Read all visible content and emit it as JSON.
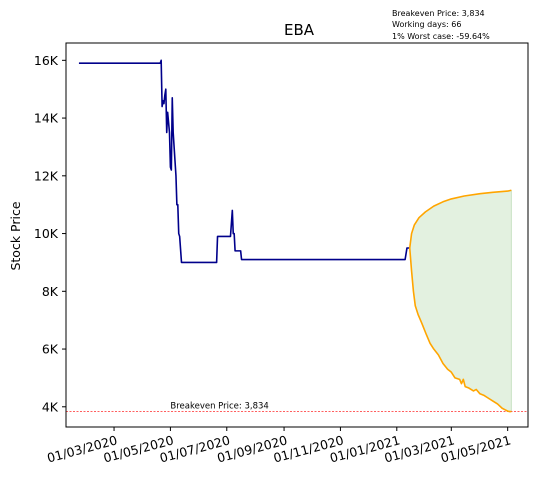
{
  "chart_data": {
    "type": "line",
    "title": "EBA",
    "ylabel": "Stock Price",
    "xlabel": "",
    "stats": [
      "Breakeven Price: 3,834",
      "Working days: 66",
      "1% Worst case: -59.64%"
    ],
    "breakeven": {
      "value": 3834,
      "label": "Breakeven Price: 3,834",
      "color": "#ff0000"
    },
    "xlim": [
      "2020-01-09",
      "2021-05-23"
    ],
    "ylim": [
      3300,
      16600
    ],
    "y_ticks": [
      4000,
      6000,
      8000,
      10000,
      12000,
      14000,
      16000
    ],
    "y_tick_labels": [
      "4K",
      "6K",
      "8K",
      "10K",
      "12K",
      "14K",
      "16K"
    ],
    "x_ticks": [
      "2020-03-01",
      "2020-05-01",
      "2020-07-01",
      "2020-09-01",
      "2020-11-01",
      "2021-01-01",
      "2021-03-01",
      "2021-05-01"
    ],
    "x_tick_labels": [
      "01/03/2020",
      "01/05/2020",
      "01/07/2020",
      "01/09/2020",
      "01/11/2020",
      "01/01/2021",
      "01/03/2021",
      "01/05/2021"
    ],
    "series": [
      {
        "kind": "historical",
        "color": "#00008b",
        "points": [
          [
            "2020-01-23",
            15900
          ],
          [
            "2020-04-20",
            15900
          ],
          [
            "2020-04-21",
            16000
          ],
          [
            "2020-04-22",
            14400
          ],
          [
            "2020-04-23",
            14600
          ],
          [
            "2020-04-24",
            14500
          ],
          [
            "2020-04-25",
            14800
          ],
          [
            "2020-04-26",
            15000
          ],
          [
            "2020-04-27",
            13500
          ],
          [
            "2020-04-28",
            14200
          ],
          [
            "2020-04-30",
            13500
          ],
          [
            "2020-05-01",
            12300
          ],
          [
            "2020-05-02",
            12200
          ],
          [
            "2020-05-03",
            14700
          ],
          [
            "2020-05-04",
            13500
          ],
          [
            "2020-05-06",
            12500
          ],
          [
            "2020-05-07",
            12000
          ],
          [
            "2020-05-08",
            11000
          ],
          [
            "2020-05-09",
            11000
          ],
          [
            "2020-05-10",
            10000
          ],
          [
            "2020-05-11",
            9900
          ],
          [
            "2020-05-13",
            9000
          ],
          [
            "2020-06-20",
            9000
          ],
          [
            "2020-06-21",
            9900
          ],
          [
            "2020-07-05",
            9900
          ],
          [
            "2020-07-07",
            10800
          ],
          [
            "2020-07-08",
            10000
          ],
          [
            "2020-07-09",
            10000
          ],
          [
            "2020-07-10",
            9400
          ],
          [
            "2020-07-16",
            9400
          ],
          [
            "2020-07-17",
            9100
          ],
          [
            "2021-01-10",
            9100
          ],
          [
            "2021-01-12",
            9500
          ],
          [
            "2021-01-15",
            9500
          ]
        ]
      },
      {
        "kind": "upper",
        "color": "#ffa500",
        "points": [
          [
            "2021-01-15",
            9500
          ],
          [
            "2021-01-17",
            10000
          ],
          [
            "2021-01-20",
            10300
          ],
          [
            "2021-01-25",
            10550
          ],
          [
            "2021-02-01",
            10750
          ],
          [
            "2021-02-10",
            10950
          ],
          [
            "2021-02-20",
            11100
          ],
          [
            "2021-03-01",
            11200
          ],
          [
            "2021-03-15",
            11300
          ],
          [
            "2021-04-01",
            11380
          ],
          [
            "2021-04-15",
            11430
          ],
          [
            "2021-05-01",
            11470
          ],
          [
            "2021-05-05",
            11500
          ]
        ]
      },
      {
        "kind": "lower",
        "color": "#ffa500",
        "points": [
          [
            "2021-01-15",
            9500
          ],
          [
            "2021-01-17",
            8700
          ],
          [
            "2021-01-19",
            8000
          ],
          [
            "2021-01-21",
            7500
          ],
          [
            "2021-01-24",
            7200
          ],
          [
            "2021-01-28",
            6900
          ],
          [
            "2021-02-02",
            6500
          ],
          [
            "2021-02-06",
            6200
          ],
          [
            "2021-02-10",
            6000
          ],
          [
            "2021-02-15",
            5800
          ],
          [
            "2021-02-20",
            5500
          ],
          [
            "2021-02-25",
            5300
          ],
          [
            "2021-03-01",
            5200
          ],
          [
            "2021-03-05",
            5000
          ],
          [
            "2021-03-10",
            4950
          ],
          [
            "2021-03-12",
            4800
          ],
          [
            "2021-03-14",
            4950
          ],
          [
            "2021-03-16",
            4700
          ],
          [
            "2021-03-20",
            4650
          ],
          [
            "2021-03-25",
            4550
          ],
          [
            "2021-03-28",
            4600
          ],
          [
            "2021-04-01",
            4450
          ],
          [
            "2021-04-05",
            4400
          ],
          [
            "2021-04-10",
            4300
          ],
          [
            "2021-04-15",
            4200
          ],
          [
            "2021-04-20",
            4100
          ],
          [
            "2021-04-25",
            3950
          ],
          [
            "2021-04-28",
            3900
          ],
          [
            "2021-05-01",
            3850
          ],
          [
            "2021-05-03",
            3834
          ],
          [
            "2021-05-05",
            3834
          ]
        ]
      }
    ],
    "band_fill_color": "#e3f1e0"
  }
}
